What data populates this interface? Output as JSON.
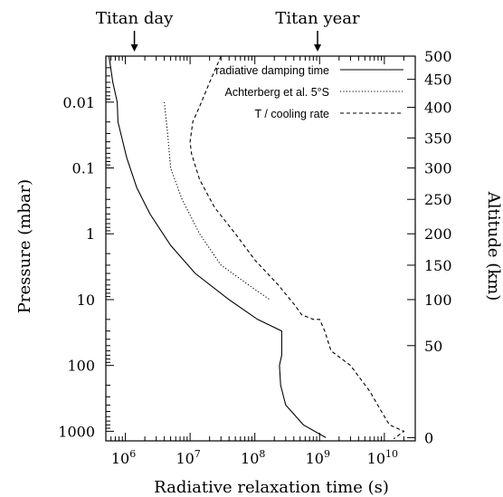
{
  "chart_data": {
    "type": "line",
    "xlabel": "Radiative relaxation time (s)",
    "ylabel_left": "Pressure (mbar)",
    "ylabel_right": "Altitude (km)",
    "x_scale": "log",
    "y_scale": "log",
    "y_reversed": true,
    "xlim": [
      500000,
      30000000000
    ],
    "ylim": [
      0.002,
      1400
    ],
    "grid": false,
    "legend_position": "top-right",
    "x_ticks": [
      {
        "value": 1000000,
        "mantissa": "10",
        "exp": "6"
      },
      {
        "value": 10000000,
        "mantissa": "10",
        "exp": "7"
      },
      {
        "value": 100000000,
        "mantissa": "10",
        "exp": "8"
      },
      {
        "value": 1000000000,
        "mantissa": "10",
        "exp": "9"
      },
      {
        "value": 10000000000,
        "mantissa": "10",
        "exp": "10"
      }
    ],
    "y_ticks_left": [
      {
        "value": 0.01,
        "label": "0.01"
      },
      {
        "value": 0.1,
        "label": "0.1"
      },
      {
        "value": 1,
        "label": "1"
      },
      {
        "value": 10,
        "label": "10"
      },
      {
        "value": 100,
        "label": "100"
      },
      {
        "value": 1000,
        "label": "1000"
      }
    ],
    "y_ticks_right": [
      {
        "pressure": 1250,
        "label": "0"
      },
      {
        "pressure": 50,
        "label": "50"
      },
      {
        "pressure": 10,
        "label": "100"
      },
      {
        "pressure": 3,
        "label": "150"
      },
      {
        "pressure": 1,
        "label": "200"
      },
      {
        "pressure": 0.3,
        "label": "250"
      },
      {
        "pressure": 0.1,
        "label": "300"
      },
      {
        "pressure": 0.035,
        "label": "350"
      },
      {
        "pressure": 0.012,
        "label": "400"
      },
      {
        "pressure": 0.0045,
        "label": "450"
      },
      {
        "pressure": 0.002,
        "label": "500"
      }
    ],
    "markers": [
      {
        "label": "Titan day",
        "x": 1380000
      },
      {
        "label": "Titan year",
        "x": 930000000
      }
    ],
    "series": [
      {
        "name": "radiative damping time",
        "style": "solid",
        "points": [
          [
            560000,
            0.002
          ],
          [
            640000,
            0.005
          ],
          [
            750000,
            0.01
          ],
          [
            770000,
            0.02
          ],
          [
            1050000,
            0.07
          ],
          [
            1500000,
            0.2
          ],
          [
            2400000,
            0.5
          ],
          [
            5000000,
            1.5
          ],
          [
            12000000,
            4
          ],
          [
            40000000,
            10
          ],
          [
            110000000,
            20
          ],
          [
            260000000,
            30
          ],
          [
            260000000,
            70
          ],
          [
            240000000,
            100
          ],
          [
            250000000,
            200
          ],
          [
            300000000,
            400
          ],
          [
            560000000,
            800
          ],
          [
            1250000000,
            1250
          ]
        ]
      },
      {
        "name": "Achterberg et al. 5°S",
        "style": "dotted",
        "points": [
          [
            4000000,
            0.01
          ],
          [
            4500000,
            0.03
          ],
          [
            5000000,
            0.1
          ],
          [
            7500000,
            0.3
          ],
          [
            14000000,
            1
          ],
          [
            30000000,
            3
          ],
          [
            80000000,
            6
          ],
          [
            170000000,
            10
          ]
        ]
      },
      {
        "name": "T / cooling rate",
        "style": "dashed",
        "points": [
          [
            30000000,
            0.002
          ],
          [
            20000000,
            0.005
          ],
          [
            15000000,
            0.01
          ],
          [
            11000000,
            0.02
          ],
          [
            10000000,
            0.04
          ],
          [
            10500000,
            0.06
          ],
          [
            14000000,
            0.15
          ],
          [
            24000000,
            0.4
          ],
          [
            50000000,
            1
          ],
          [
            100000000,
            2.5
          ],
          [
            230000000,
            6
          ],
          [
            410000000,
            12
          ],
          [
            530000000,
            17
          ],
          [
            800000000,
            20
          ],
          [
            1000000000,
            20
          ],
          [
            1200000000,
            30
          ],
          [
            1500000000,
            60
          ],
          [
            3000000000,
            100
          ],
          [
            6000000000,
            250
          ],
          [
            9000000000,
            500
          ],
          [
            12000000000,
            800
          ],
          [
            20000000000,
            1000
          ],
          [
            14000000000,
            1300
          ]
        ]
      }
    ]
  }
}
